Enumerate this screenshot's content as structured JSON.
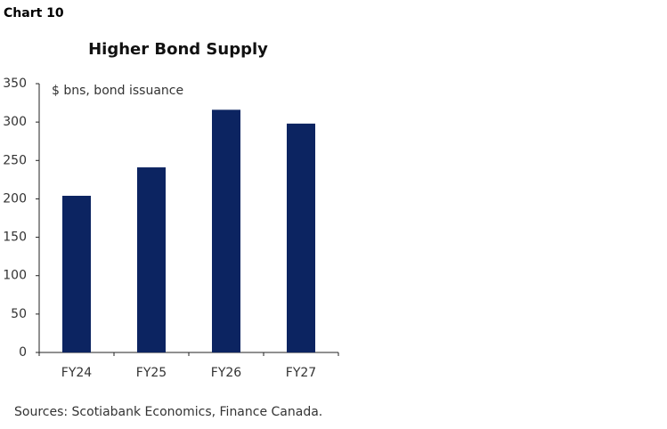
{
  "chart_data": {
    "type": "bar",
    "label": "Chart 10",
    "title": "Higher Bond Supply",
    "ylabel": "$ bns,  bond issuance",
    "categories": [
      "FY24",
      "FY25",
      "FY26",
      "FY27"
    ],
    "values": [
      204,
      241,
      316,
      298
    ],
    "color": "#0c2461",
    "ylim": [
      0,
      350
    ],
    "yticks": [
      0,
      50,
      100,
      150,
      200,
      250,
      300,
      350
    ],
    "grid": false,
    "source": "Sources: Scotiabank Economics, Finance Canada."
  }
}
